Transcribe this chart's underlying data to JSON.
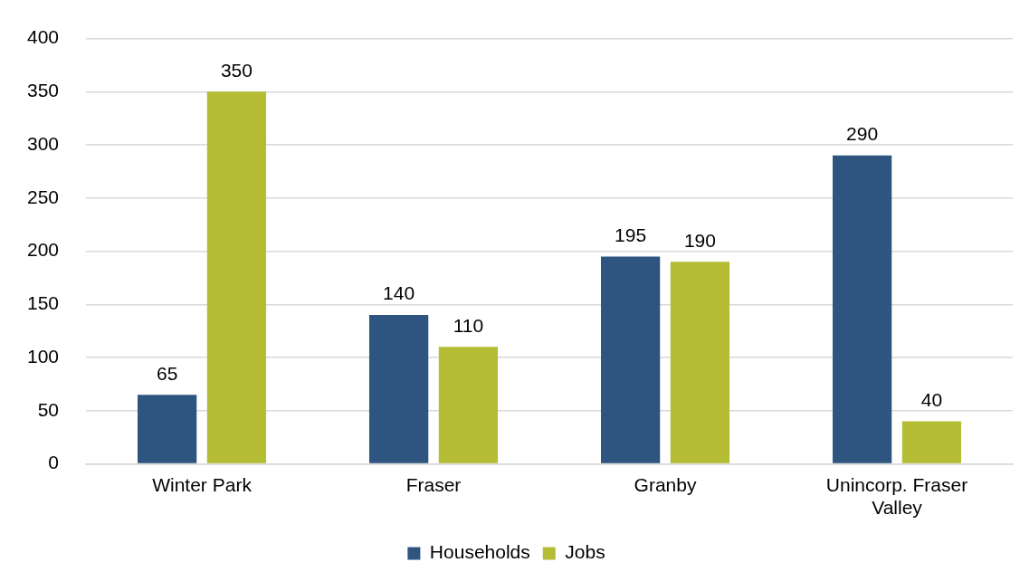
{
  "chart_data": {
    "type": "bar",
    "categories": [
      "Winter Park",
      "Fraser",
      "Granby",
      "Unincorp. Fraser Valley"
    ],
    "series": [
      {
        "name": "Households",
        "color": "#2e5480",
        "values": [
          65,
          140,
          195,
          290
        ]
      },
      {
        "name": "Jobs",
        "color": "#b5bd35",
        "values": [
          350,
          110,
          190,
          40
        ]
      }
    ],
    "ylim": [
      0,
      400
    ],
    "yticks": [
      0,
      50,
      100,
      150,
      200,
      250,
      300,
      350,
      400
    ],
    "grid": "y",
    "legend": "bottom",
    "data_labels": true
  }
}
